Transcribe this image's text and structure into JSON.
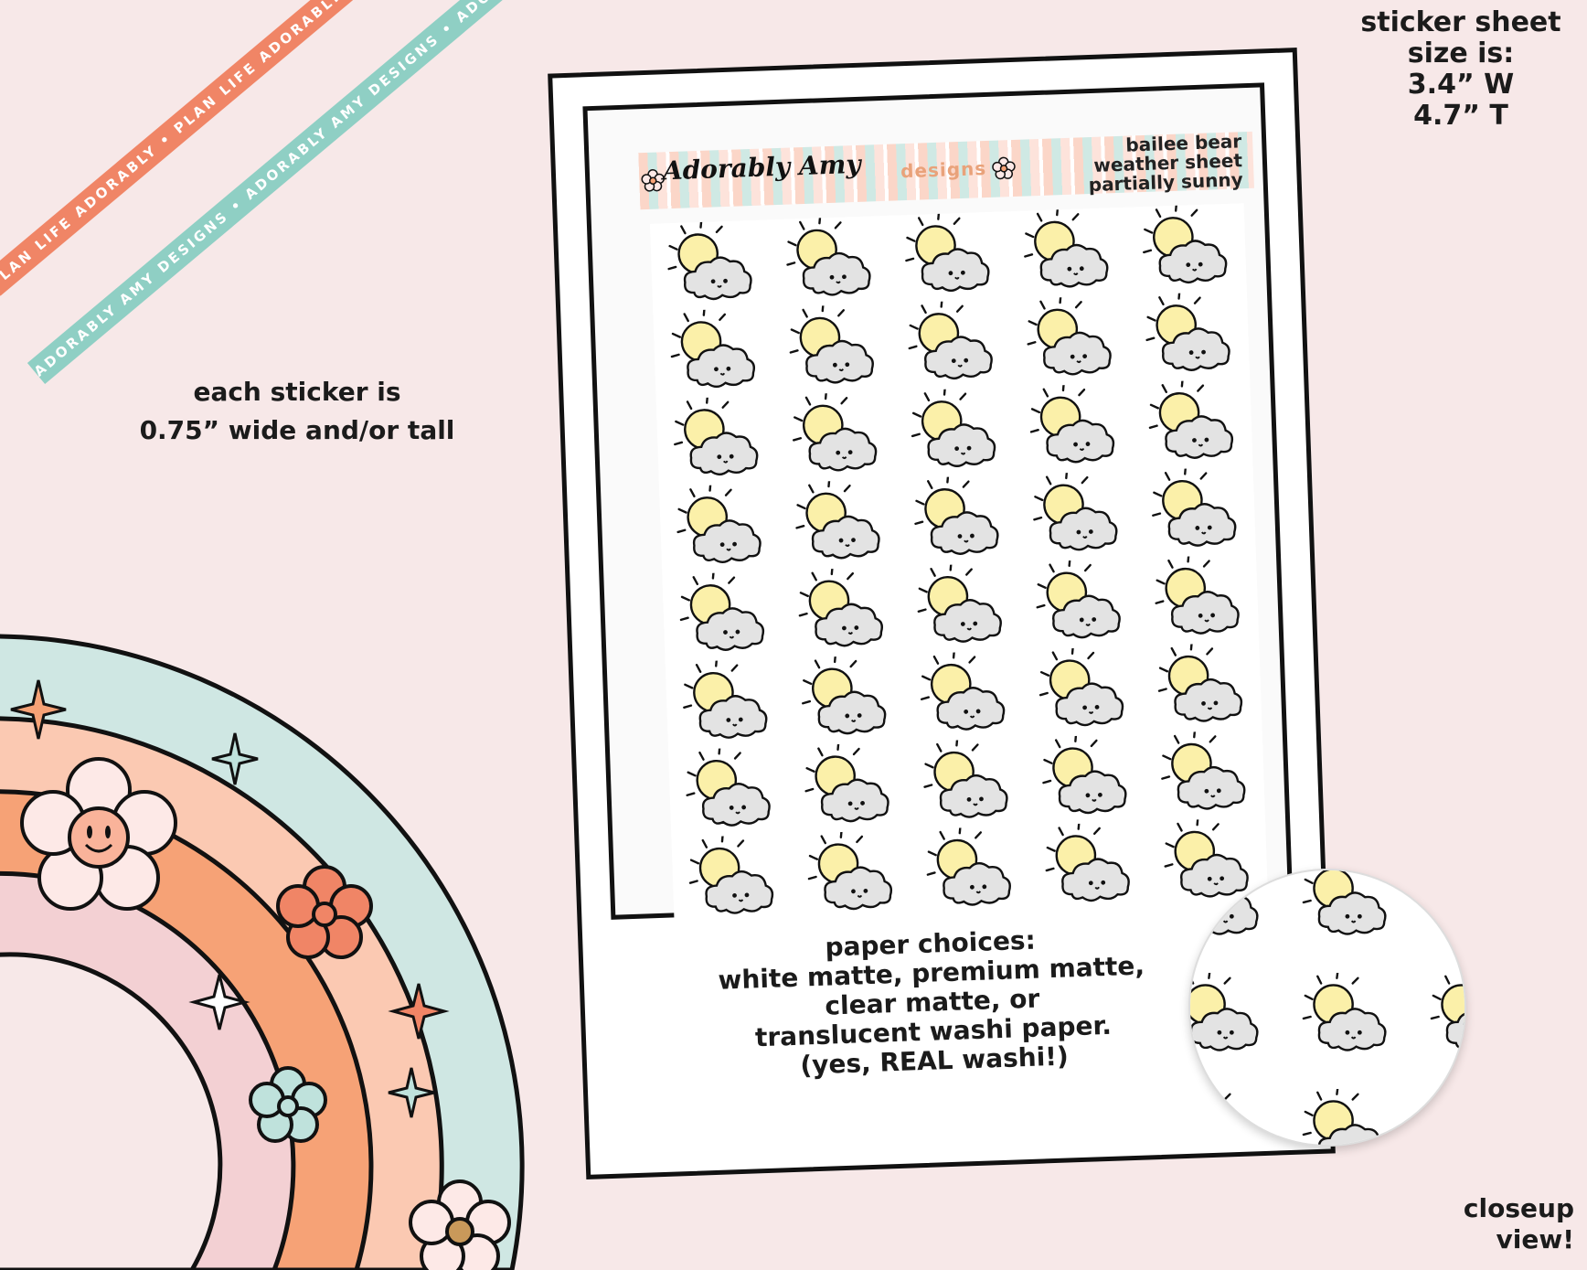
{
  "ribbons": {
    "coral_text": "PLAN LIFE ADORABLY • PLAN LIFE ADORABLY • PLAN LIFE ADORABLY •",
    "teal_text": "ADORABLY AMY DESIGNS • ADORABLY AMY DESIGNS • ADORABLY AMY DESIGNS •"
  },
  "sheet_size": {
    "l1": "sticker sheet",
    "l2": "size is:",
    "l3": "3.4” W",
    "l4": "4.7” T"
  },
  "sticker_size": {
    "l1": "each sticker is",
    "l2": "0.75” wide and/or tall"
  },
  "header": {
    "brand": "Adorably Amy",
    "brand_sub": "designs",
    "title_l1": "bailee bear",
    "title_l2": "weather sheet",
    "title_l3": "partially sunny"
  },
  "paper": {
    "l1": "paper choices:",
    "l2": "white matte, premium matte,",
    "l3": "clear matte, or",
    "l4": "translucent washi paper.",
    "l5": "(yes, REAL washi!)"
  },
  "closeup": {
    "l1": "closeup",
    "l2": "view!"
  },
  "grid": {
    "rows": 8,
    "cols": 5
  },
  "closeup_grid": {
    "rows": 3,
    "cols": 3
  },
  "colors": {
    "sun": "#fbf0a9",
    "cloud": "#e3e3e3",
    "coral": "#f08566",
    "teal": "#8fcfc4",
    "peach": "#fbc9b2",
    "pink": "#f3d0d3"
  }
}
